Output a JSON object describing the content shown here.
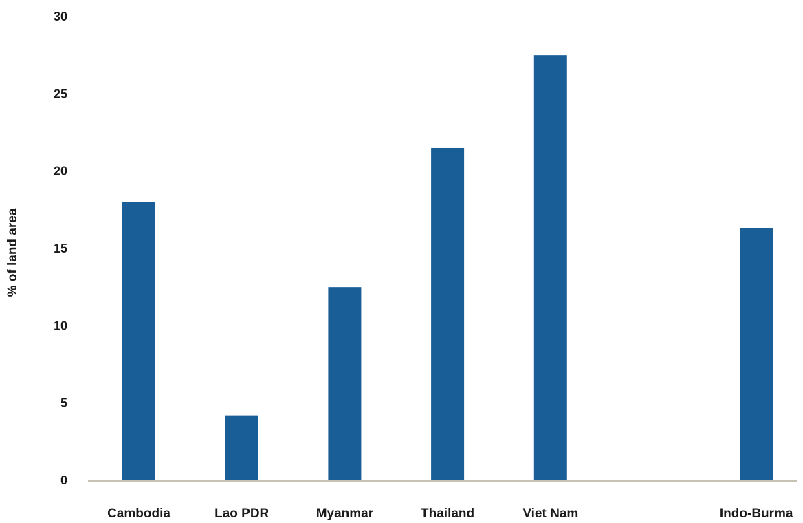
{
  "chart_data": {
    "type": "bar",
    "title": "",
    "xlabel": "",
    "ylabel": "% of land area",
    "ylim": [
      0,
      30
    ],
    "yticks": [
      0,
      5,
      10,
      15,
      20,
      25,
      30
    ],
    "grid": false,
    "categories": [
      "Cambodia",
      "Lao PDR",
      "Myanmar",
      "Thailand",
      "Viet Nam",
      "",
      "Indo-Burma"
    ],
    "series": [
      {
        "values": [
          18.0,
          4.2,
          12.5,
          21.5,
          27.5,
          null,
          16.3
        ]
      }
    ],
    "colors": {
      "bar": "#1a5e98",
      "baseline": "#c8c2b5"
    }
  }
}
